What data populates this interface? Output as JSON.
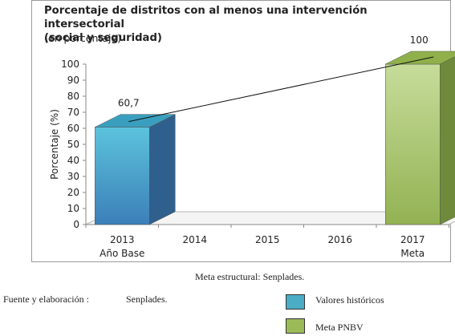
{
  "chart_data": {
    "type": "bar",
    "title_line1": "Porcentaje de distritos con al menos una intervención intersectorial",
    "title_line2": "(social y seguridad)",
    "subtitle": "(en porcentaje)",
    "ylabel": "Porcentaje (%)",
    "ylim": [
      0,
      100
    ],
    "yticks": [
      "0",
      "10",
      "20",
      "30",
      "40",
      "50",
      "60",
      "70",
      "80",
      "90",
      "100"
    ],
    "categories": [
      "2013",
      "2014",
      "2015",
      "2016",
      "2017"
    ],
    "category_sublabels": [
      "Año Base",
      "",
      "",
      "",
      "Meta"
    ],
    "series": [
      {
        "name": "Valores históricos",
        "color": "#4bacc6",
        "values": [
          60.7,
          null,
          null,
          null,
          null
        ]
      },
      {
        "name": "Meta PNBV",
        "color": "#9bbb59",
        "values": [
          null,
          null,
          null,
          null,
          100
        ]
      }
    ],
    "data_labels": [
      "60,7",
      "100"
    ],
    "trend_line": true,
    "grid": false,
    "legend_position": "bottom-right"
  },
  "footer": {
    "caption": "Meta estructural: Senplades.",
    "source_label": "Fuente y elaboración :",
    "source_value": "Senplades.",
    "legend_historical": "Valores históricos",
    "legend_goal": "Meta PNBV",
    "color_historical": "#4bacc6",
    "color_goal": "#9bbb59"
  }
}
